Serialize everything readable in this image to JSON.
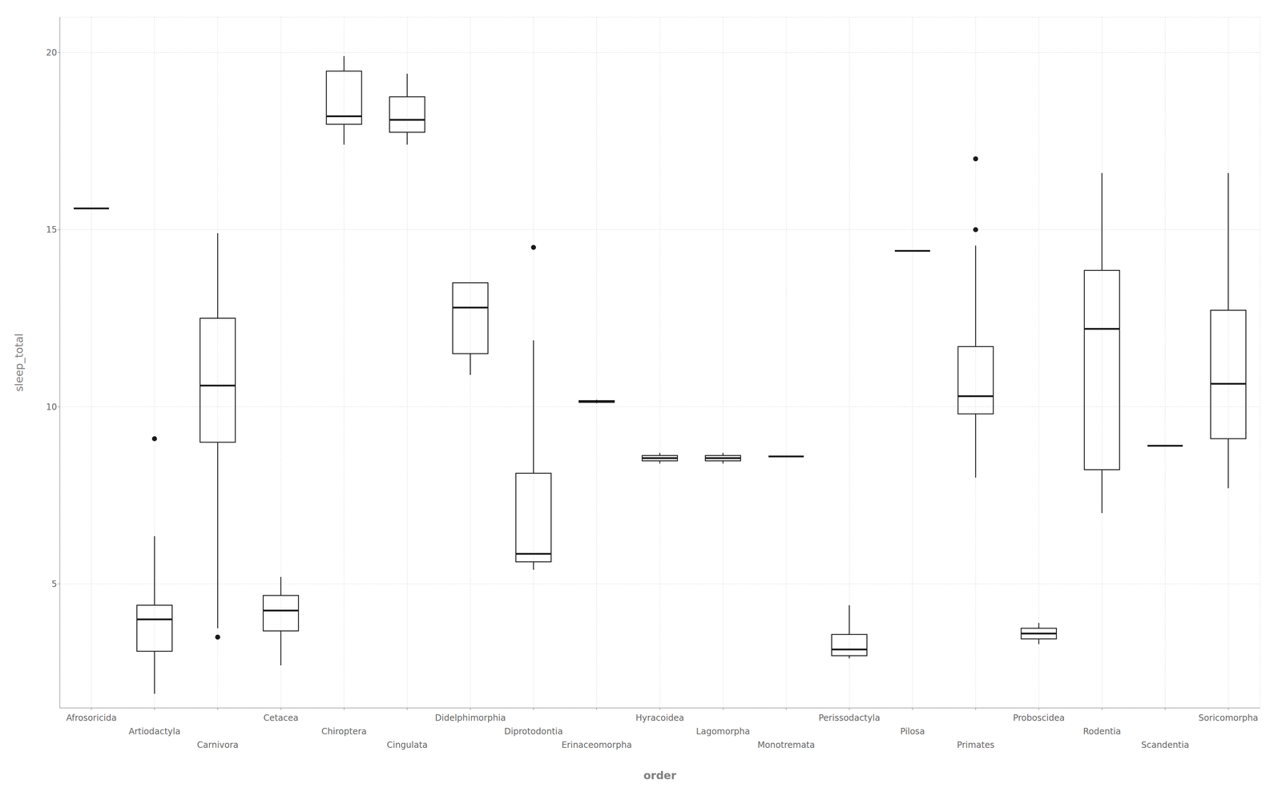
{
  "chart_data": {
    "type": "box",
    "xlabel": "order",
    "ylabel": "sleep_total",
    "ylim": [
      1.5,
      21.0
    ],
    "yticks": [
      5,
      10,
      15,
      20
    ],
    "grid": true,
    "color": "#1A1A1A",
    "categories": [
      "Afrosoricida",
      "Artiodactyla",
      "Carnivora",
      "Cetacea",
      "Chiroptera",
      "Cingulata",
      "Didelphimorphia",
      "Diprotodontia",
      "Erinaceomorpha",
      "Hyracoidea",
      "Lagomorpha",
      "Monotremata",
      "Perissodactyla",
      "Pilosa",
      "Primates",
      "Proboscidea",
      "Rodentia",
      "Scandentia",
      "Soricomorpha"
    ],
    "values": [
      {
        "value": 15.6
      },
      {
        "whislo": 1.9,
        "q1": 3.1,
        "med": 4.0,
        "q3": 4.4,
        "whishi": 6.35,
        "fliers": [
          9.1
        ]
      },
      {
        "whislo": 3.75,
        "q1": 9.0,
        "med": 10.6,
        "q3": 12.5,
        "whishi": 14.9,
        "fliers": [
          3.5
        ]
      },
      {
        "whislo": 2.7,
        "q1": 3.675,
        "med": 4.25,
        "q3": 4.675,
        "whishi": 5.2,
        "fliers": []
      },
      {
        "whislo": 17.4,
        "q1": 17.975,
        "med": 18.2,
        "q3": 19.475,
        "whishi": 19.9,
        "fliers": []
      },
      {
        "whislo": 17.4,
        "q1": 17.75,
        "med": 18.1,
        "q3": 18.75,
        "whishi": 19.4,
        "fliers": []
      },
      {
        "whislo": 10.9,
        "q1": 11.5,
        "med": 12.8,
        "q3": 13.5,
        "whishi": 13.5,
        "fliers": []
      },
      {
        "whislo": 5.4,
        "q1": 5.625,
        "med": 5.85,
        "q3": 8.125,
        "whishi": 11.875,
        "fliers": [
          14.5
        ]
      },
      {
        "whislo": 10.1,
        "q1": 10.125,
        "med": 10.15,
        "q3": 10.175,
        "whishi": 10.2,
        "fliers": []
      },
      {
        "whislo": 8.4,
        "q1": 8.475,
        "med": 8.55,
        "q3": 8.625,
        "whishi": 8.7,
        "fliers": []
      },
      {
        "whislo": 8.4,
        "q1": 8.475,
        "med": 8.55,
        "q3": 8.625,
        "whishi": 8.7,
        "fliers": []
      },
      {
        "value": 8.6
      },
      {
        "whislo": 2.9,
        "q1": 2.975,
        "med": 3.15,
        "q3": 3.575,
        "whishi": 4.4,
        "fliers": []
      },
      {
        "value": 14.4
      },
      {
        "whislo": 8.0,
        "q1": 9.8,
        "med": 10.3,
        "q3": 11.7,
        "whishi": 14.55,
        "fliers": [
          17.0,
          15.0
        ]
      },
      {
        "whislo": 3.3,
        "q1": 3.45,
        "med": 3.6,
        "q3": 3.75,
        "whishi": 3.9,
        "fliers": []
      },
      {
        "whislo": 7.0,
        "q1": 8.225,
        "med": 12.2,
        "q3": 13.85,
        "whishi": 16.6,
        "fliers": []
      },
      {
        "value": 8.9
      },
      {
        "whislo": 7.7,
        "q1": 9.1,
        "med": 10.65,
        "q3": 12.725,
        "whishi": 16.6,
        "fliers": []
      }
    ]
  }
}
